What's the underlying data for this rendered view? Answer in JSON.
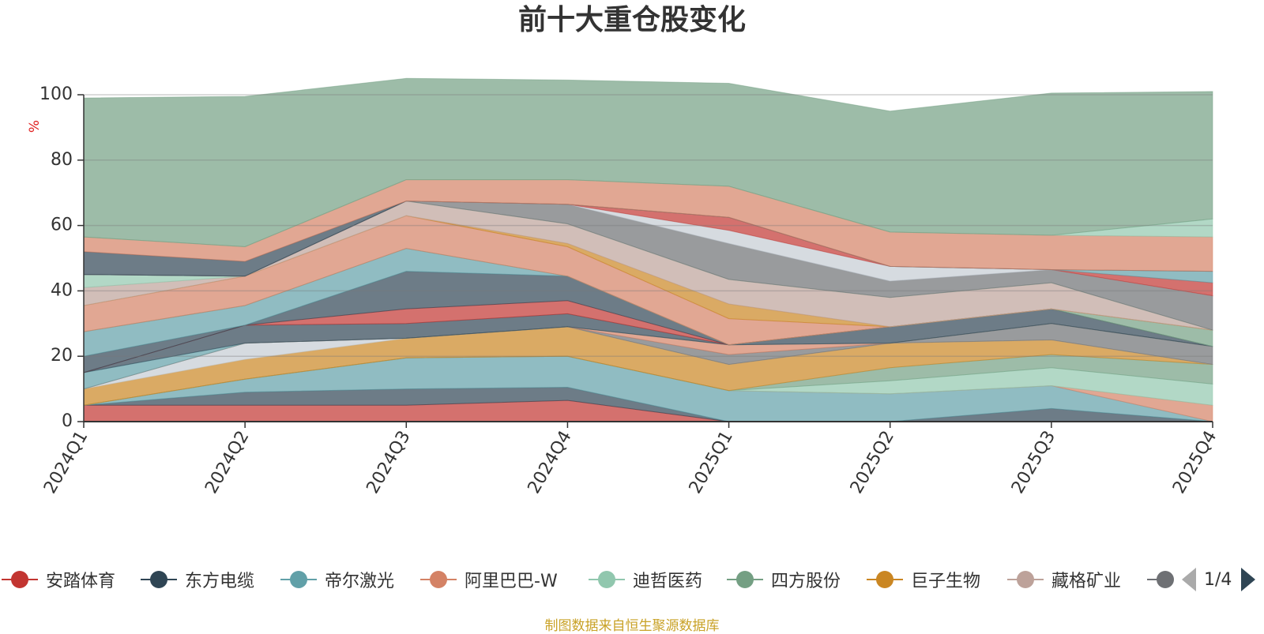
{
  "chart_data": {
    "type": "area",
    "title": "前十大重仓股变化",
    "ylabel": "%",
    "ylim": [
      0,
      100
    ],
    "yticks": [
      0,
      20,
      40,
      60,
      80,
      100
    ],
    "categories": [
      "2024Q1",
      "2024Q2",
      "2024Q3",
      "2024Q4",
      "2025Q1",
      "2025Q2",
      "2025Q3",
      "2025Q4"
    ],
    "grid": true,
    "source_note": "制图数据来自恒生聚源数据库",
    "legend": {
      "position": "bottom",
      "page": "1/4",
      "items": [
        {
          "name": "安踏体育",
          "color": "#c23531"
        },
        {
          "name": "东方电缆",
          "color": "#2f4554"
        },
        {
          "name": "帝尔激光",
          "color": "#61a0a8"
        },
        {
          "name": "阿里巴巴-W",
          "color": "#d48265"
        },
        {
          "name": "迪哲医药",
          "color": "#91c7ae"
        },
        {
          "name": "四方股份",
          "color": "#749f83"
        },
        {
          "name": "巨子生物",
          "color": "#ca8622"
        },
        {
          "name": "藏格矿业",
          "color": "#bda29a"
        },
        {
          "name": "",
          "color": "#6e7074"
        }
      ]
    },
    "stack_bands": [
      {
        "color": "#c23531",
        "values": [
          5,
          5,
          5,
          6.5,
          0,
          0,
          0,
          0
        ]
      },
      {
        "color": "#2f4554",
        "values": [
          0,
          4,
          5,
          4,
          0,
          0,
          4,
          0
        ]
      },
      {
        "color": "#61a0a8",
        "values": [
          0,
          4,
          9.5,
          9.5,
          9.5,
          8.5,
          7,
          0
        ]
      },
      {
        "color": "#d48265",
        "values": [
          0,
          0,
          0,
          0,
          0,
          0,
          0,
          5
        ]
      },
      {
        "color": "#91c7ae",
        "values": [
          0,
          0,
          0,
          0,
          0,
          4,
          5.5,
          6.5
        ]
      },
      {
        "color": "#749f83",
        "values": [
          0,
          0,
          0,
          0,
          0,
          4,
          4,
          6
        ]
      },
      {
        "color": "#ca8622",
        "values": [
          5,
          6,
          6,
          9,
          8,
          7.5,
          4.5,
          0
        ]
      },
      {
        "color": "#c4ccd3",
        "values": [
          0,
          5,
          0,
          0,
          0,
          0,
          0,
          0
        ]
      },
      {
        "color": "#6e7074",
        "values": [
          0,
          0,
          0,
          0,
          3,
          0,
          5,
          5.5
        ]
      },
      {
        "color": "#bda29a",
        "values": [
          0,
          0,
          0,
          0,
          0,
          0,
          0,
          0
        ]
      },
      {
        "color": "#c4ccd3",
        "values": [
          0,
          0,
          0,
          0,
          0,
          0,
          0,
          0
        ]
      },
      {
        "color": "#d48265",
        "values": [
          0,
          0,
          0,
          0,
          3,
          0,
          0,
          0
        ]
      },
      {
        "color": "#61a0a8",
        "values": [
          5,
          0,
          0,
          0,
          0,
          0,
          0,
          0
        ]
      },
      {
        "color": "#2f4554",
        "values": [
          0,
          5.5,
          4.5,
          4,
          0,
          5,
          4.5,
          0
        ]
      },
      {
        "color": "#c23531",
        "values": [
          0,
          0,
          4.5,
          4,
          0,
          0,
          0,
          0
        ]
      },
      {
        "color": "#2f4554",
        "values": [
          5,
          0,
          11.5,
          7.5,
          0,
          0,
          0,
          0
        ]
      },
      {
        "color": "#61a0a8",
        "values": [
          7.5,
          6,
          7,
          0,
          0,
          0,
          0,
          0
        ]
      },
      {
        "color": "#749f83",
        "values": [
          0,
          0,
          0,
          0,
          0,
          0,
          0,
          5
        ]
      },
      {
        "color": "#d48265",
        "values": [
          8,
          9,
          10,
          9,
          8,
          0,
          0,
          0
        ]
      },
      {
        "color": "#ca8622",
        "values": [
          0,
          0,
          0,
          1,
          4.5,
          0,
          0,
          0
        ]
      },
      {
        "color": "#bda29a",
        "values": [
          5.5,
          0,
          4.5,
          6,
          7.5,
          9,
          8,
          0
        ]
      },
      {
        "color": "#91c7ae",
        "values": [
          4,
          0,
          0,
          0,
          0,
          0,
          0,
          0
        ]
      },
      {
        "color": "#6e7074",
        "values": [
          0,
          0,
          0,
          6,
          11,
          5,
          4,
          10.5
        ]
      },
      {
        "color": "#c4ccd3",
        "values": [
          0,
          0,
          0,
          0,
          4,
          4.5,
          0,
          0
        ]
      },
      {
        "color": "#c23531",
        "values": [
          0,
          0,
          0,
          0,
          4,
          0,
          0,
          4
        ]
      },
      {
        "color": "#61a0a8",
        "values": [
          0,
          0,
          0,
          0,
          0,
          0,
          0,
          3.5
        ]
      },
      {
        "color": "#2f4554",
        "values": [
          7,
          4.5,
          0,
          0,
          0,
          0,
          0,
          0
        ]
      },
      {
        "color": "#d48265",
        "values": [
          4.5,
          4.5,
          6.5,
          7.5,
          9.5,
          10.5,
          10.5,
          10.5
        ]
      },
      {
        "color": "#91c7ae",
        "values": [
          0,
          0,
          0,
          0,
          0,
          0,
          0,
          5.5
        ]
      },
      {
        "color": "#749f83",
        "values": [
          42.5,
          46,
          31,
          30.5,
          31.5,
          37,
          43.5,
          39
        ]
      }
    ]
  }
}
